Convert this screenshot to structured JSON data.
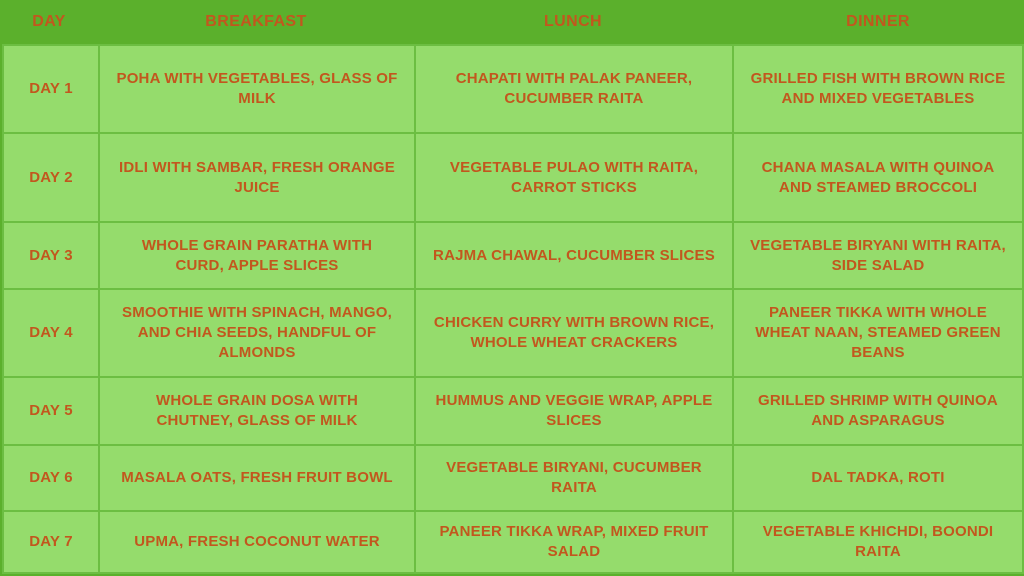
{
  "title": "Weekly Meal Plan Table",
  "colors": {
    "background": "#5BB02C",
    "cell": "#95DC6C",
    "border": "#6CBE42",
    "header_text": "#C2571E",
    "cell_text": "#C2571E"
  },
  "table": {
    "headers": [
      "DAY",
      "BREAKFAST",
      "LUNCH",
      "DINNER"
    ],
    "rows": [
      {
        "day": "DAY 1",
        "breakfast": "POHA WITH VEGETABLES, GLASS OF MILK",
        "lunch": "CHAPATI WITH PALAK PANEER, CUCUMBER RAITA",
        "dinner": "GRILLED FISH WITH BROWN RICE AND MIXED VEGETABLES"
      },
      {
        "day": "DAY 2",
        "breakfast": "IDLI WITH SAMBAR, FRESH ORANGE JUICE",
        "lunch": "VEGETABLE PULAO WITH RAITA, CARROT STICKS",
        "dinner": "CHANA MASALA WITH QUINOA AND STEAMED BROCCOLI"
      },
      {
        "day": "DAY 3",
        "breakfast": "WHOLE GRAIN PARATHA WITH CURD, APPLE SLICES",
        "lunch": "RAJMA CHAWAL, CUCUMBER SLICES",
        "dinner": "VEGETABLE BIRYANI WITH RAITA, SIDE SALAD"
      },
      {
        "day": "DAY 4",
        "breakfast": "SMOOTHIE WITH SPINACH, MANGO, AND CHIA SEEDS, HANDFUL OF ALMONDS",
        "lunch": "CHICKEN CURRY WITH BROWN RICE, WHOLE WHEAT CRACKERS",
        "dinner": "PANEER TIKKA WITH WHOLE WHEAT NAAN, STEAMED GREEN BEANS"
      },
      {
        "day": "DAY 5",
        "breakfast": "WHOLE GRAIN DOSA WITH CHUTNEY, GLASS OF MILK",
        "lunch": "HUMMUS AND VEGGIE WRAP, APPLE SLICES",
        "dinner": "GRILLED SHRIMP WITH QUINOA AND ASPARAGUS"
      },
      {
        "day": "DAY 6",
        "breakfast": "MASALA OATS, FRESH FRUIT BOWL",
        "lunch": "VEGETABLE BIRYANI, CUCUMBER RAITA",
        "dinner": "DAL TADKA, ROTI"
      },
      {
        "day": "DAY 7",
        "breakfast": "UPMA, FRESH COCONUT WATER",
        "lunch": "PANEER TIKKA WRAP, MIXED FRUIT SALAD",
        "dinner": "VEGETABLE KHICHDI, BOONDI RAITA"
      }
    ]
  }
}
